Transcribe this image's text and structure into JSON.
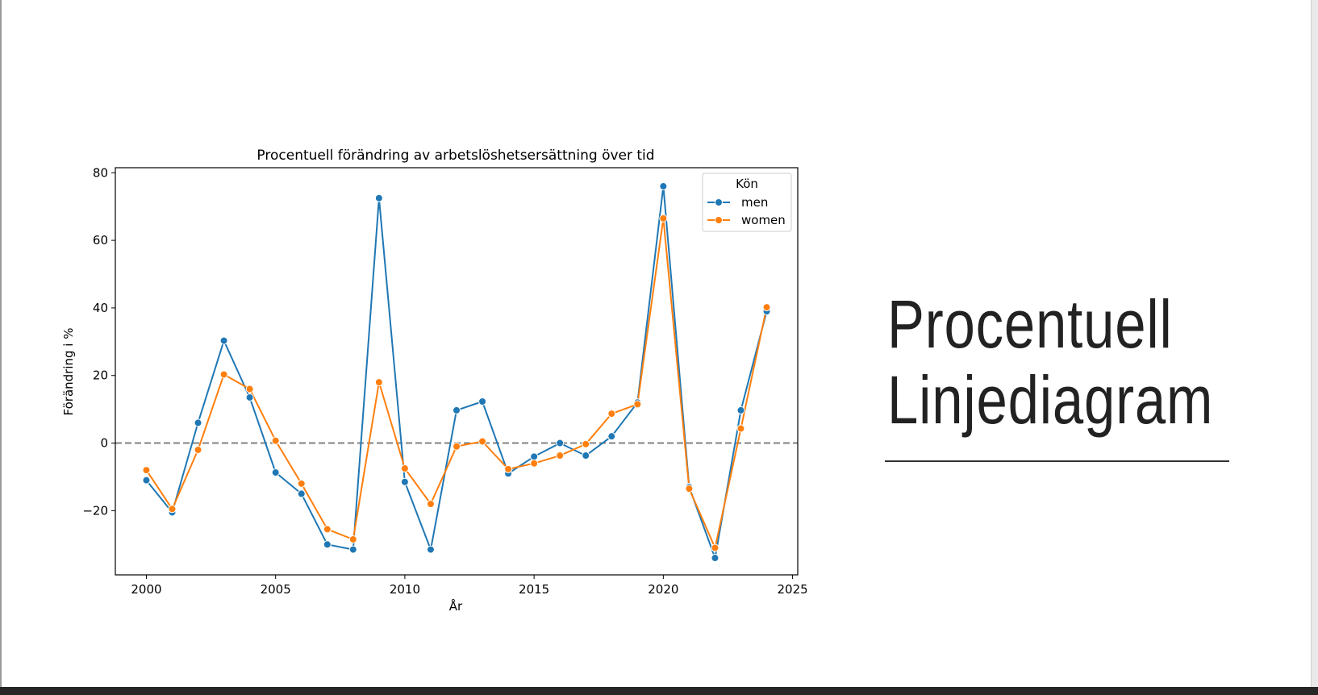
{
  "slide": {
    "heading_line1": "Procentuell",
    "heading_line2": "Linjediagram"
  },
  "chart_data": {
    "type": "line",
    "title": "Procentuell förändring av arbetslöshetsersättning över tid",
    "xlabel": "År",
    "ylabel": "Förändring i %",
    "xlim": [
      1998.8,
      2025.2
    ],
    "ylim": [
      -39,
      81.5
    ],
    "xticks": [
      2000,
      2005,
      2010,
      2015,
      2020,
      2025
    ],
    "yticks": [
      -20,
      0,
      20,
      40,
      60,
      80
    ],
    "reference_line": {
      "y": 0,
      "style": "dashed",
      "color": "#808080"
    },
    "grid": false,
    "legend": {
      "title": "Kön",
      "placement": "top-right"
    },
    "x": [
      2000,
      2001,
      2002,
      2003,
      2004,
      2005,
      2006,
      2007,
      2008,
      2009,
      2010,
      2011,
      2012,
      2013,
      2014,
      2015,
      2016,
      2017,
      2018,
      2019,
      2020,
      2021,
      2022,
      2023,
      2024
    ],
    "series": [
      {
        "name": "men",
        "color": "#1f77b4",
        "values": [
          -11,
          -20.5,
          6,
          30.3,
          13.5,
          -8.7,
          -15,
          -30,
          -31.5,
          72.5,
          -11.5,
          -31.5,
          9.7,
          12.3,
          -9,
          -4,
          0,
          -3.7,
          2,
          12,
          76,
          -13,
          -34,
          9.7,
          39
        ]
      },
      {
        "name": "women",
        "color": "#ff7f0e",
        "values": [
          -8,
          -19.5,
          -2,
          20.3,
          16,
          0.7,
          -12,
          -25.5,
          -28.5,
          18,
          -7.5,
          -18,
          -1,
          0.5,
          -7.7,
          -6,
          -3.7,
          -0.3,
          8.7,
          11.5,
          66.5,
          -13.5,
          -31,
          4.3,
          40.2
        ]
      }
    ]
  }
}
